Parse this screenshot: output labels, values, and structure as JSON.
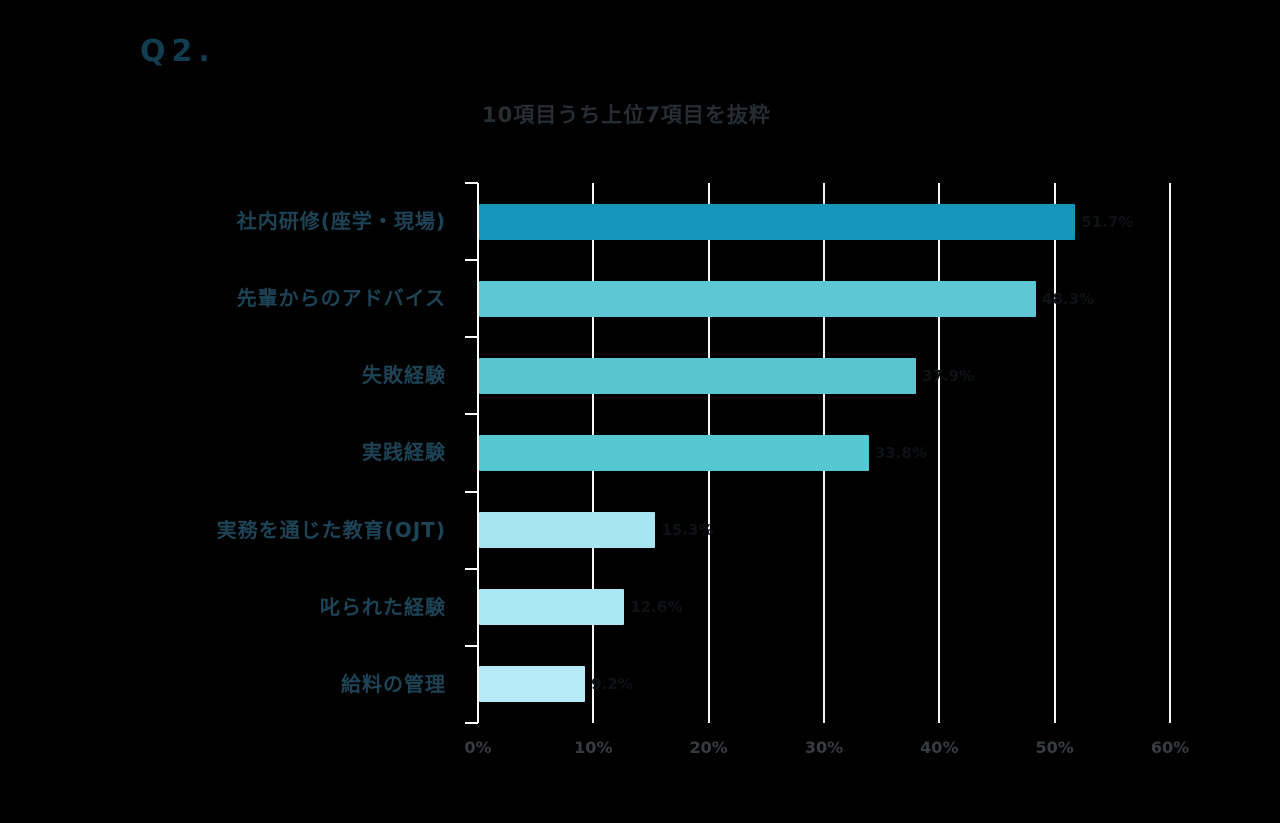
{
  "header": {
    "question_label": "Q2.",
    "subtitle": "10項目うち上位7項目を抜粋"
  },
  "chart_data": {
    "type": "bar",
    "orientation": "horizontal",
    "title": "10項目うち上位7項目を抜粋",
    "categories": [
      "社内研修(座学・現場)",
      "先輩からのアドバイス",
      "失敗経験",
      "実践経験",
      "実務を通じた教育(OJT)",
      "叱られた経験",
      "給料の管理"
    ],
    "values": [
      51.7,
      48.3,
      37.9,
      33.8,
      15.3,
      12.6,
      9.2
    ],
    "value_labels": [
      "51.7%",
      "48.3%",
      "37.9%",
      "33.8%",
      "15.3%",
      "12.6%",
      "9.2%"
    ],
    "bar_colors": [
      "#1895ba",
      "#5fc6d5",
      "#59c5cf",
      "#56c6d0",
      "#a7e5f2",
      "#abe8f5",
      "#b7ebf8"
    ],
    "xlabel": "",
    "ylabel": "",
    "x_ticks": [
      "0%",
      "10%",
      "20%",
      "30%",
      "40%",
      "50%",
      "60%"
    ],
    "xlim": [
      0,
      60
    ],
    "grid": "vertical-only",
    "legend": false
  },
  "colors": {
    "background": "#000000",
    "gridline": "#f5f5f5",
    "category_text": "#1d4356",
    "tick_text": "#363c40",
    "title_text": "#123c4f",
    "subtitle_text": "#262d33"
  }
}
